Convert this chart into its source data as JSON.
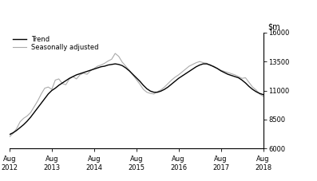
{
  "ylim": [
    6000,
    16000
  ],
  "yticks": [
    6000,
    8500,
    11000,
    13500,
    16000
  ],
  "legend_entries": [
    "Trend",
    "Seasonally adjusted"
  ],
  "trend_color": "#000000",
  "seasonal_color": "#aaaaaa",
  "background_color": "#ffffff",
  "trend_x": [
    0,
    1,
    2,
    3,
    4,
    5,
    6,
    7,
    8,
    9,
    10,
    11,
    12,
    13,
    14,
    15,
    16,
    17,
    18,
    19,
    20,
    21,
    22,
    23,
    24,
    25,
    26,
    27,
    28,
    29,
    30,
    31,
    32,
    33,
    34,
    35,
    36,
    37,
    38,
    39,
    40,
    41,
    42,
    43,
    44,
    45,
    46,
    47,
    48,
    49,
    50,
    51,
    52,
    53,
    54,
    55,
    56,
    57,
    58,
    59,
    60,
    61,
    62,
    63,
    64,
    65,
    66,
    67,
    68,
    69,
    70,
    71,
    72
  ],
  "trend_y": [
    7200,
    7350,
    7550,
    7800,
    8050,
    8350,
    8700,
    9100,
    9500,
    9900,
    10300,
    10700,
    11000,
    11200,
    11450,
    11650,
    11850,
    12050,
    12200,
    12350,
    12450,
    12550,
    12650,
    12750,
    12850,
    12950,
    13050,
    13100,
    13200,
    13250,
    13300,
    13250,
    13150,
    12950,
    12700,
    12400,
    12100,
    11800,
    11450,
    11150,
    10950,
    10850,
    10850,
    10950,
    11100,
    11300,
    11550,
    11800,
    12050,
    12250,
    12450,
    12650,
    12850,
    13050,
    13200,
    13300,
    13300,
    13200,
    13050,
    12900,
    12700,
    12550,
    12400,
    12300,
    12200,
    12100,
    11900,
    11650,
    11350,
    11100,
    10900,
    10750,
    10650
  ],
  "seasonal_x": [
    0,
    1,
    2,
    3,
    4,
    5,
    6,
    7,
    8,
    9,
    10,
    11,
    12,
    13,
    14,
    15,
    16,
    17,
    18,
    19,
    20,
    21,
    22,
    23,
    24,
    25,
    26,
    27,
    28,
    29,
    30,
    31,
    32,
    33,
    34,
    35,
    36,
    37,
    38,
    39,
    40,
    41,
    42,
    43,
    44,
    45,
    46,
    47,
    48,
    49,
    50,
    51,
    52,
    53,
    54,
    55,
    56,
    57,
    58,
    59,
    60,
    61,
    62,
    63,
    64,
    65,
    66,
    67,
    68,
    69,
    70,
    71,
    72
  ],
  "seasonal_y": [
    7000,
    7300,
    7700,
    8300,
    8600,
    8800,
    9100,
    9600,
    10100,
    10700,
    11200,
    11300,
    11100,
    11900,
    12000,
    11600,
    11500,
    12000,
    12200,
    12000,
    12350,
    12500,
    12400,
    12700,
    12900,
    13100,
    13200,
    13350,
    13550,
    13700,
    14200,
    13950,
    13450,
    13100,
    12750,
    12350,
    11950,
    11550,
    11100,
    10850,
    10750,
    10700,
    10900,
    11050,
    11300,
    11600,
    11900,
    12150,
    12350,
    12600,
    12850,
    13100,
    13250,
    13400,
    13500,
    13400,
    13350,
    13150,
    13100,
    12900,
    12750,
    12650,
    12550,
    12450,
    12350,
    12200,
    12050,
    12100,
    11700,
    11300,
    11050,
    10700,
    10500
  ],
  "xtick_positions": [
    0,
    12,
    24,
    36,
    48,
    60,
    72
  ],
  "xtick_labels": [
    "Aug\n2012",
    "Aug\n2013",
    "Aug\n2014",
    "Aug\n2015",
    "Aug\n2016",
    "Aug\n2017",
    "Aug\n2018"
  ]
}
